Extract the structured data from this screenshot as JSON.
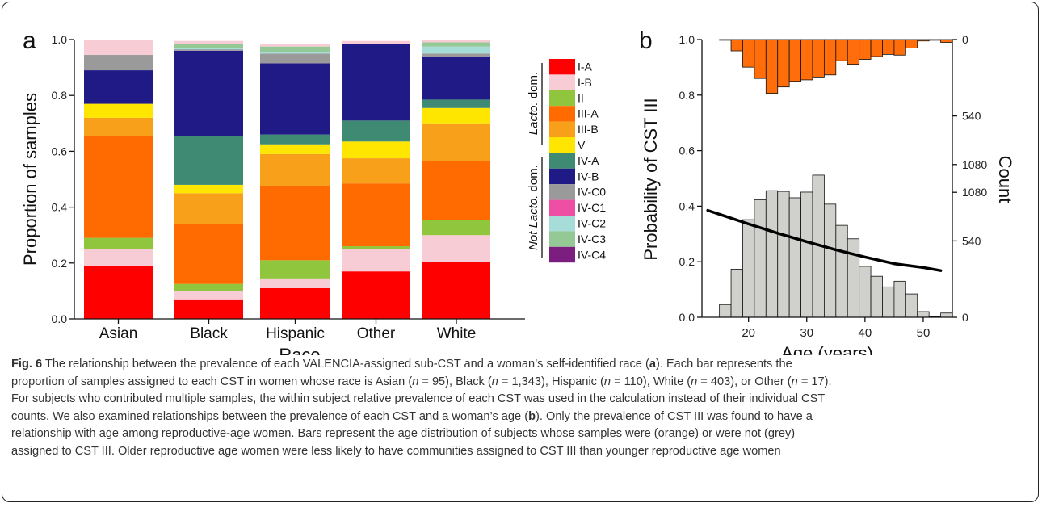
{
  "colors": {
    "I-A": "#ff0000",
    "I-B": "#f8ccd4",
    "II": "#8fc63e",
    "III-A": "#ff6b00",
    "III-B": "#f8a01a",
    "V": "#ffe600",
    "IV-A": "#3e8a72",
    "IV-B": "#1f1a86",
    "IV-C0": "#9a9a9a",
    "IV-C1": "#ee4fa5",
    "IV-C2": "#a7ddd9",
    "IV-C3": "#94c894",
    "IV-C4": "#7b1e80",
    "hist_orange": "#ff6e0a",
    "hist_grey": "#d0d0cc"
  },
  "panel_a": {
    "letter": "a",
    "ylabel": "Proportion of samples",
    "xlabel": "Race",
    "legend_group1": "Lacto. dom.",
    "legend_group2_prefix": "Not",
    "legend_group2_italic": "Lacto.",
    "legend_group2_suffix": "dom.",
    "legend": [
      "I-A",
      "I-B",
      "II",
      "III-A",
      "III-B",
      "V",
      "IV-A",
      "IV-B",
      "IV-C0",
      "IV-C1",
      "IV-C2",
      "IV-C3",
      "IV-C4"
    ]
  },
  "panel_b": {
    "letter": "b",
    "ylabel_left": "Probability of CST III",
    "ylabel_right": "Count",
    "xlabel": "Age (years)"
  },
  "chart_data": [
    {
      "type": "bar",
      "stacked": true,
      "ylabel": "Proportion of samples",
      "xlabel": "Race",
      "ylim": [
        0,
        1.0
      ],
      "yticks": [
        "0.0",
        "0.2",
        "0.4",
        "0.6",
        "0.8",
        "1.0"
      ],
      "categories": [
        "Asian",
        "Black",
        "Hispanic",
        "Other",
        "White"
      ],
      "series": [
        {
          "name": "I-A",
          "values": [
            0.19,
            0.07,
            0.11,
            0.17,
            0.205
          ]
        },
        {
          "name": "I-B",
          "values": [
            0.06,
            0.03,
            0.035,
            0.08,
            0.095
          ]
        },
        {
          "name": "II",
          "values": [
            0.04,
            0.025,
            0.065,
            0.01,
            0.055
          ]
        },
        {
          "name": "III-A",
          "values": [
            0.365,
            0.215,
            0.265,
            0.225,
            0.21
          ]
        },
        {
          "name": "III-B",
          "values": [
            0.065,
            0.11,
            0.115,
            0.09,
            0.135
          ]
        },
        {
          "name": "V",
          "values": [
            0.05,
            0.03,
            0.035,
            0.06,
            0.055
          ]
        },
        {
          "name": "IV-A",
          "values": [
            0,
            0.175,
            0.035,
            0.075,
            0.03
          ]
        },
        {
          "name": "IV-B",
          "values": [
            0.12,
            0.305,
            0.255,
            0.275,
            0.155
          ]
        },
        {
          "name": "IV-C0",
          "values": [
            0.055,
            0.005,
            0.035,
            0,
            0.01
          ]
        },
        {
          "name": "IV-C1",
          "values": [
            0,
            0,
            0,
            0,
            0
          ]
        },
        {
          "name": "IV-C2",
          "values": [
            0,
            0.005,
            0.005,
            0,
            0.025
          ]
        },
        {
          "name": "IV-C3",
          "values": [
            0,
            0.015,
            0.02,
            0,
            0.015
          ]
        },
        {
          "name": "IV-C4",
          "values": [
            0,
            0,
            0,
            0,
            0
          ]
        },
        {
          "name": "I-B",
          "values": [
            0.055,
            0.01,
            0.01,
            0.01,
            0.01
          ]
        }
      ]
    },
    {
      "type": "line",
      "ylabel": "Probability of CST III",
      "xlabel": "Age (years)",
      "xlim": [
        12,
        55
      ],
      "ylim": [
        0,
        1.0
      ],
      "xticks": [
        "20",
        "30",
        "40",
        "50"
      ],
      "yticks": [
        "0.0",
        "0.2",
        "0.4",
        "0.6",
        "0.8",
        "1.0"
      ],
      "series": [
        {
          "values": [
            [
              13,
              0.385
            ],
            [
              20,
              0.336
            ],
            [
              25,
              0.303
            ],
            [
              30,
              0.272
            ],
            [
              35,
              0.243
            ],
            [
              40,
              0.217
            ],
            [
              45,
              0.193
            ],
            [
              50,
              0.179
            ],
            [
              53,
              0.168
            ]
          ]
        }
      ]
    },
    {
      "type": "bar",
      "ylabel": "Count",
      "color": "orange",
      "direction": "down-from-top",
      "yticks_right": [
        "0",
        "540",
        "1080"
      ],
      "bins": [
        13,
        15,
        17,
        19,
        21,
        23,
        25,
        27,
        29,
        31,
        33,
        35,
        37,
        39,
        41,
        43,
        45,
        47,
        49,
        51,
        53
      ],
      "values": [
        0,
        5,
        80,
        195,
        275,
        380,
        335,
        295,
        285,
        265,
        250,
        150,
        175,
        140,
        120,
        105,
        110,
        60,
        10,
        5,
        20
      ]
    },
    {
      "type": "bar",
      "ylabel": "Count",
      "color": "grey",
      "direction": "up-from-bottom",
      "yticks_right": [
        "0",
        "540",
        "1080"
      ],
      "bins": [
        13,
        15,
        17,
        19,
        21,
        23,
        25,
        27,
        29,
        31,
        33,
        35,
        37,
        39,
        41,
        43,
        45,
        47,
        49,
        51,
        53
      ],
      "values": [
        0,
        90,
        340,
        690,
        830,
        895,
        890,
        845,
        885,
        1005,
        800,
        650,
        555,
        360,
        290,
        215,
        255,
        165,
        40,
        5,
        30
      ]
    }
  ],
  "caption": {
    "fig_label": "Fig. 6",
    "line1_a": "The relationship between the prevalence of each VALENCIA-assigned sub-CST and a woman’s self-identified race (",
    "a_ref": "a",
    "line1_b": "). Each bar represents the",
    "line2_a": "proportion of samples assigned to each CST in women whose race is Asian (",
    "n": "n",
    "eq95": " = 95), Black (",
    "eq1343": " = 1,343), Hispanic (",
    "eq110": " = 110), White (",
    "eq403": " = 403), or Other (",
    "eq17": " = 17).",
    "line3": "For subjects who contributed multiple samples, the within subject relative prevalence of each CST was used in the calculation instead of their individual CST",
    "line4_a": "counts. We also examined relationships between the prevalence of each CST and a woman’s age (",
    "b_ref": "b",
    "line4_b": "). Only the prevalence of CST III was found to have a",
    "line5": "relationship with age among reproductive-age women. Bars represent the age distribution of subjects whose samples were (orange) or were not (grey)",
    "line6": "assigned to CST III. Older reproductive age women were less likely to have communities assigned to CST III than younger reproductive age women"
  }
}
